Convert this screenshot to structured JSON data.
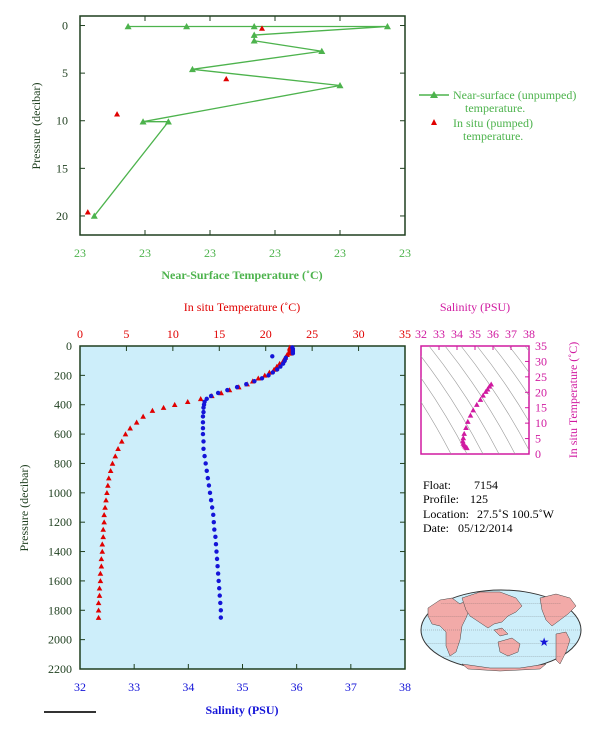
{
  "colors": {
    "green": "#4db34d",
    "red": "#e00000",
    "blue": "#1414d8",
    "magenta": "#d01aa0",
    "plot_bg": "#cdeefa",
    "axis_dark": "#1f3f1f",
    "land": "#f2aaa8",
    "ocean": "#cdeefa"
  },
  "chart_data": [
    {
      "id": "near_surface",
      "type": "scatter",
      "xlabel": "Near-Surface Temperature (˚C)",
      "ylabel": "Pressure (decibar)",
      "x_tick_labels": [
        "23",
        "23",
        "23",
        "23",
        "23",
        "23"
      ],
      "y_ticks": [
        0,
        5,
        10,
        15,
        20
      ],
      "xlim": [
        23.04,
        23.09
      ],
      "ylim": [
        22,
        -1
      ],
      "series": [
        {
          "name": "Near-surface (unpumped) temperature.",
          "style": "line-triangle",
          "color": "green",
          "points": [
            [
              23.0474,
              0.1
            ],
            [
              23.0564,
              0.1
            ],
            [
              23.0668,
              0.1
            ],
            [
              23.0873,
              0.1
            ],
            [
              23.0668,
              1.0
            ],
            [
              23.0668,
              1.6
            ],
            [
              23.0772,
              2.7
            ],
            [
              23.0573,
              4.6
            ],
            [
              23.08,
              6.3
            ],
            [
              23.0497,
              10.1
            ],
            [
              23.0536,
              10.1
            ],
            [
              23.0422,
              20.0
            ]
          ]
        },
        {
          "name": "In situ (pumped) temperature.",
          "style": "triangle",
          "color": "red",
          "points": [
            [
              23.068,
              0.3
            ],
            [
              23.0625,
              5.6
            ],
            [
              23.0457,
              9.3
            ],
            [
              23.0412,
              19.6
            ]
          ]
        }
      ]
    },
    {
      "id": "profile",
      "type": "scatter",
      "top_xlabel": "In situ Temperature (˚C)",
      "bottom_xlabel": "Salinity (PSU)",
      "ylabel": "Pressure (decibar)",
      "temp_ticks": [
        0,
        5,
        10,
        15,
        20,
        25,
        30,
        35
      ],
      "sal_ticks": [
        32,
        33,
        34,
        35,
        36,
        37,
        38
      ],
      "y_ticks": [
        0,
        200,
        400,
        600,
        800,
        1000,
        1200,
        1400,
        1600,
        1800,
        2000,
        2200
      ],
      "temp_lim": [
        0,
        35
      ],
      "sal_lim": [
        32,
        38
      ],
      "ylim": [
        2200,
        0
      ],
      "temperature": {
        "color": "red",
        "points": [
          [
            22.6,
            10
          ],
          [
            22.6,
            20
          ],
          [
            22.6,
            30
          ],
          [
            22.6,
            40
          ],
          [
            22.6,
            50
          ],
          [
            22.3,
            60
          ],
          [
            22.1,
            80
          ],
          [
            21.9,
            100
          ],
          [
            21.5,
            120
          ],
          [
            21.2,
            140
          ],
          [
            20.9,
            160
          ],
          [
            20.4,
            180
          ],
          [
            19.9,
            200
          ],
          [
            19.2,
            220
          ],
          [
            18.6,
            240
          ],
          [
            18.0,
            260
          ],
          [
            17.1,
            280
          ],
          [
            16.1,
            300
          ],
          [
            15.2,
            320
          ],
          [
            14.2,
            340
          ],
          [
            13.0,
            360
          ],
          [
            11.6,
            380
          ],
          [
            10.2,
            400
          ],
          [
            9.0,
            420
          ],
          [
            7.8,
            440
          ],
          [
            6.8,
            480
          ],
          [
            6.1,
            520
          ],
          [
            5.4,
            560
          ],
          [
            4.9,
            600
          ],
          [
            4.5,
            650
          ],
          [
            4.1,
            700
          ],
          [
            3.8,
            750
          ],
          [
            3.5,
            800
          ],
          [
            3.3,
            850
          ],
          [
            3.1,
            900
          ],
          [
            3.0,
            950
          ],
          [
            2.9,
            1000
          ],
          [
            2.8,
            1050
          ],
          [
            2.7,
            1100
          ],
          [
            2.6,
            1150
          ],
          [
            2.6,
            1200
          ],
          [
            2.5,
            1250
          ],
          [
            2.5,
            1300
          ],
          [
            2.4,
            1350
          ],
          [
            2.4,
            1400
          ],
          [
            2.3,
            1450
          ],
          [
            2.3,
            1500
          ],
          [
            2.2,
            1550
          ],
          [
            2.2,
            1600
          ],
          [
            2.1,
            1650
          ],
          [
            2.1,
            1700
          ],
          [
            2.0,
            1750
          ],
          [
            2.0,
            1800
          ],
          [
            2.0,
            1850
          ]
        ]
      },
      "salinity": {
        "color": "blue",
        "points": [
          [
            35.92,
            10
          ],
          [
            35.93,
            20
          ],
          [
            35.93,
            30
          ],
          [
            35.93,
            40
          ],
          [
            35.93,
            50
          ],
          [
            35.55,
            70
          ],
          [
            35.8,
            80
          ],
          [
            35.78,
            100
          ],
          [
            35.75,
            120
          ],
          [
            35.7,
            140
          ],
          [
            35.64,
            160
          ],
          [
            35.56,
            180
          ],
          [
            35.48,
            200
          ],
          [
            35.36,
            220
          ],
          [
            35.22,
            240
          ],
          [
            35.07,
            260
          ],
          [
            34.9,
            280
          ],
          [
            34.72,
            300
          ],
          [
            34.55,
            320
          ],
          [
            34.42,
            340
          ],
          [
            34.34,
            360
          ],
          [
            34.3,
            380
          ],
          [
            34.29,
            400
          ],
          [
            34.28,
            420
          ],
          [
            34.28,
            450
          ],
          [
            34.27,
            480
          ],
          [
            34.27,
            520
          ],
          [
            34.27,
            560
          ],
          [
            34.27,
            600
          ],
          [
            34.28,
            650
          ],
          [
            34.28,
            700
          ],
          [
            34.3,
            750
          ],
          [
            34.32,
            800
          ],
          [
            34.34,
            850
          ],
          [
            34.36,
            900
          ],
          [
            34.38,
            950
          ],
          [
            34.4,
            1000
          ],
          [
            34.42,
            1050
          ],
          [
            34.44,
            1100
          ],
          [
            34.46,
            1150
          ],
          [
            34.47,
            1200
          ],
          [
            34.48,
            1250
          ],
          [
            34.5,
            1300
          ],
          [
            34.51,
            1350
          ],
          [
            34.52,
            1400
          ],
          [
            34.53,
            1450
          ],
          [
            34.54,
            1500
          ],
          [
            34.55,
            1550
          ],
          [
            34.56,
            1600
          ],
          [
            34.57,
            1650
          ],
          [
            34.58,
            1700
          ],
          [
            34.59,
            1750
          ],
          [
            34.6,
            1800
          ],
          [
            34.6,
            1850
          ]
        ]
      }
    },
    {
      "id": "ts_diagram",
      "type": "scatter",
      "top_xlabel": "Salinity (PSU)",
      "ylabel": "In situ Temperature (˚C)",
      "sal_ticks": [
        32,
        33,
        34,
        35,
        36,
        37,
        38
      ],
      "temp_ticks": [
        0,
        5,
        10,
        15,
        20,
        25,
        30,
        35
      ],
      "sal_lim": [
        32,
        38
      ],
      "temp_lim": [
        0,
        35
      ],
      "color": "magenta",
      "points": [
        [
          35.9,
          22.6
        ],
        [
          35.8,
          21.9
        ],
        [
          35.7,
          21.0
        ],
        [
          35.6,
          20.2
        ],
        [
          35.45,
          19.0
        ],
        [
          35.3,
          17.6
        ],
        [
          35.1,
          16.0
        ],
        [
          34.9,
          14.2
        ],
        [
          34.75,
          12.5
        ],
        [
          34.6,
          10.5
        ],
        [
          34.5,
          8.5
        ],
        [
          34.4,
          6.6
        ],
        [
          34.35,
          5.2
        ],
        [
          34.32,
          4.2
        ],
        [
          34.35,
          3.4
        ],
        [
          34.4,
          2.9
        ],
        [
          34.45,
          2.5
        ],
        [
          34.5,
          2.2
        ],
        [
          34.55,
          2.0
        ]
      ]
    }
  ],
  "info": {
    "float_label": "Float:",
    "float_value": "7154",
    "profile_label": "Profile:",
    "profile_value": "125",
    "location_label": "Location:",
    "location_value": "27.5˚S  100.5˚W",
    "date_label": "Date:",
    "date_value": "05/12/2014"
  },
  "map": {
    "marker_lon": -100.5,
    "marker_lat": -27.5,
    "marker_symbol": "★",
    "marker_color": "blue"
  }
}
